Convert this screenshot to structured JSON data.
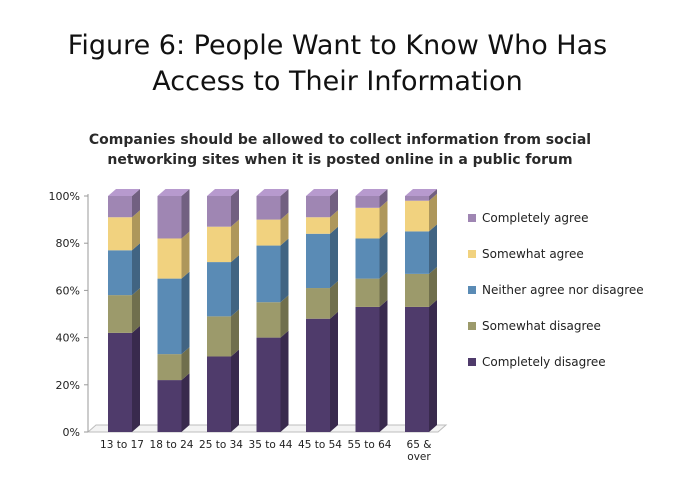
{
  "figure": {
    "title_line1": "Figure 6: People Want to Know Who Has",
    "title_line2": "Access to Their Information"
  },
  "chart_data": {
    "type": "bar",
    "stacked": true,
    "title_line1": "Companies should be allowed to collect information from social",
    "title_line2": "networking sites when it is posted online in a public forum",
    "categories": [
      "13 to 17",
      "18 to 24",
      "25 to 34",
      "35 to 44",
      "45 to 54",
      "55 to 64",
      "65 & over"
    ],
    "category_lines": [
      [
        "13 to 17"
      ],
      [
        "18 to 24"
      ],
      [
        "25 to 34"
      ],
      [
        "35 to 44"
      ],
      [
        "45 to 54"
      ],
      [
        "55 to 64"
      ],
      [
        "65 &",
        "over"
      ]
    ],
    "yticks": [
      "0%",
      "20%",
      "40%",
      "60%",
      "80%",
      "100%"
    ],
    "ylim": [
      0,
      100
    ],
    "legend_position": "right",
    "series": [
      {
        "name": "Completely disagree",
        "color": "#4f3b6b",
        "values": [
          42,
          22,
          32,
          40,
          48,
          53,
          53
        ]
      },
      {
        "name": "Somewhat disagree",
        "color": "#9c9a6b",
        "values": [
          16,
          11,
          17,
          15,
          13,
          12,
          14
        ]
      },
      {
        "name": "Neither agree nor disagree",
        "color": "#5a8bb5",
        "values": [
          19,
          32,
          23,
          24,
          23,
          17,
          18
        ]
      },
      {
        "name": "Somewhat agree",
        "color": "#f1d27f",
        "values": [
          14,
          17,
          15,
          11,
          7,
          13,
          13
        ]
      },
      {
        "name": "Completely agree",
        "color": "#9f86b3",
        "values": [
          9,
          18,
          13,
          10,
          9,
          5,
          2
        ]
      }
    ]
  }
}
